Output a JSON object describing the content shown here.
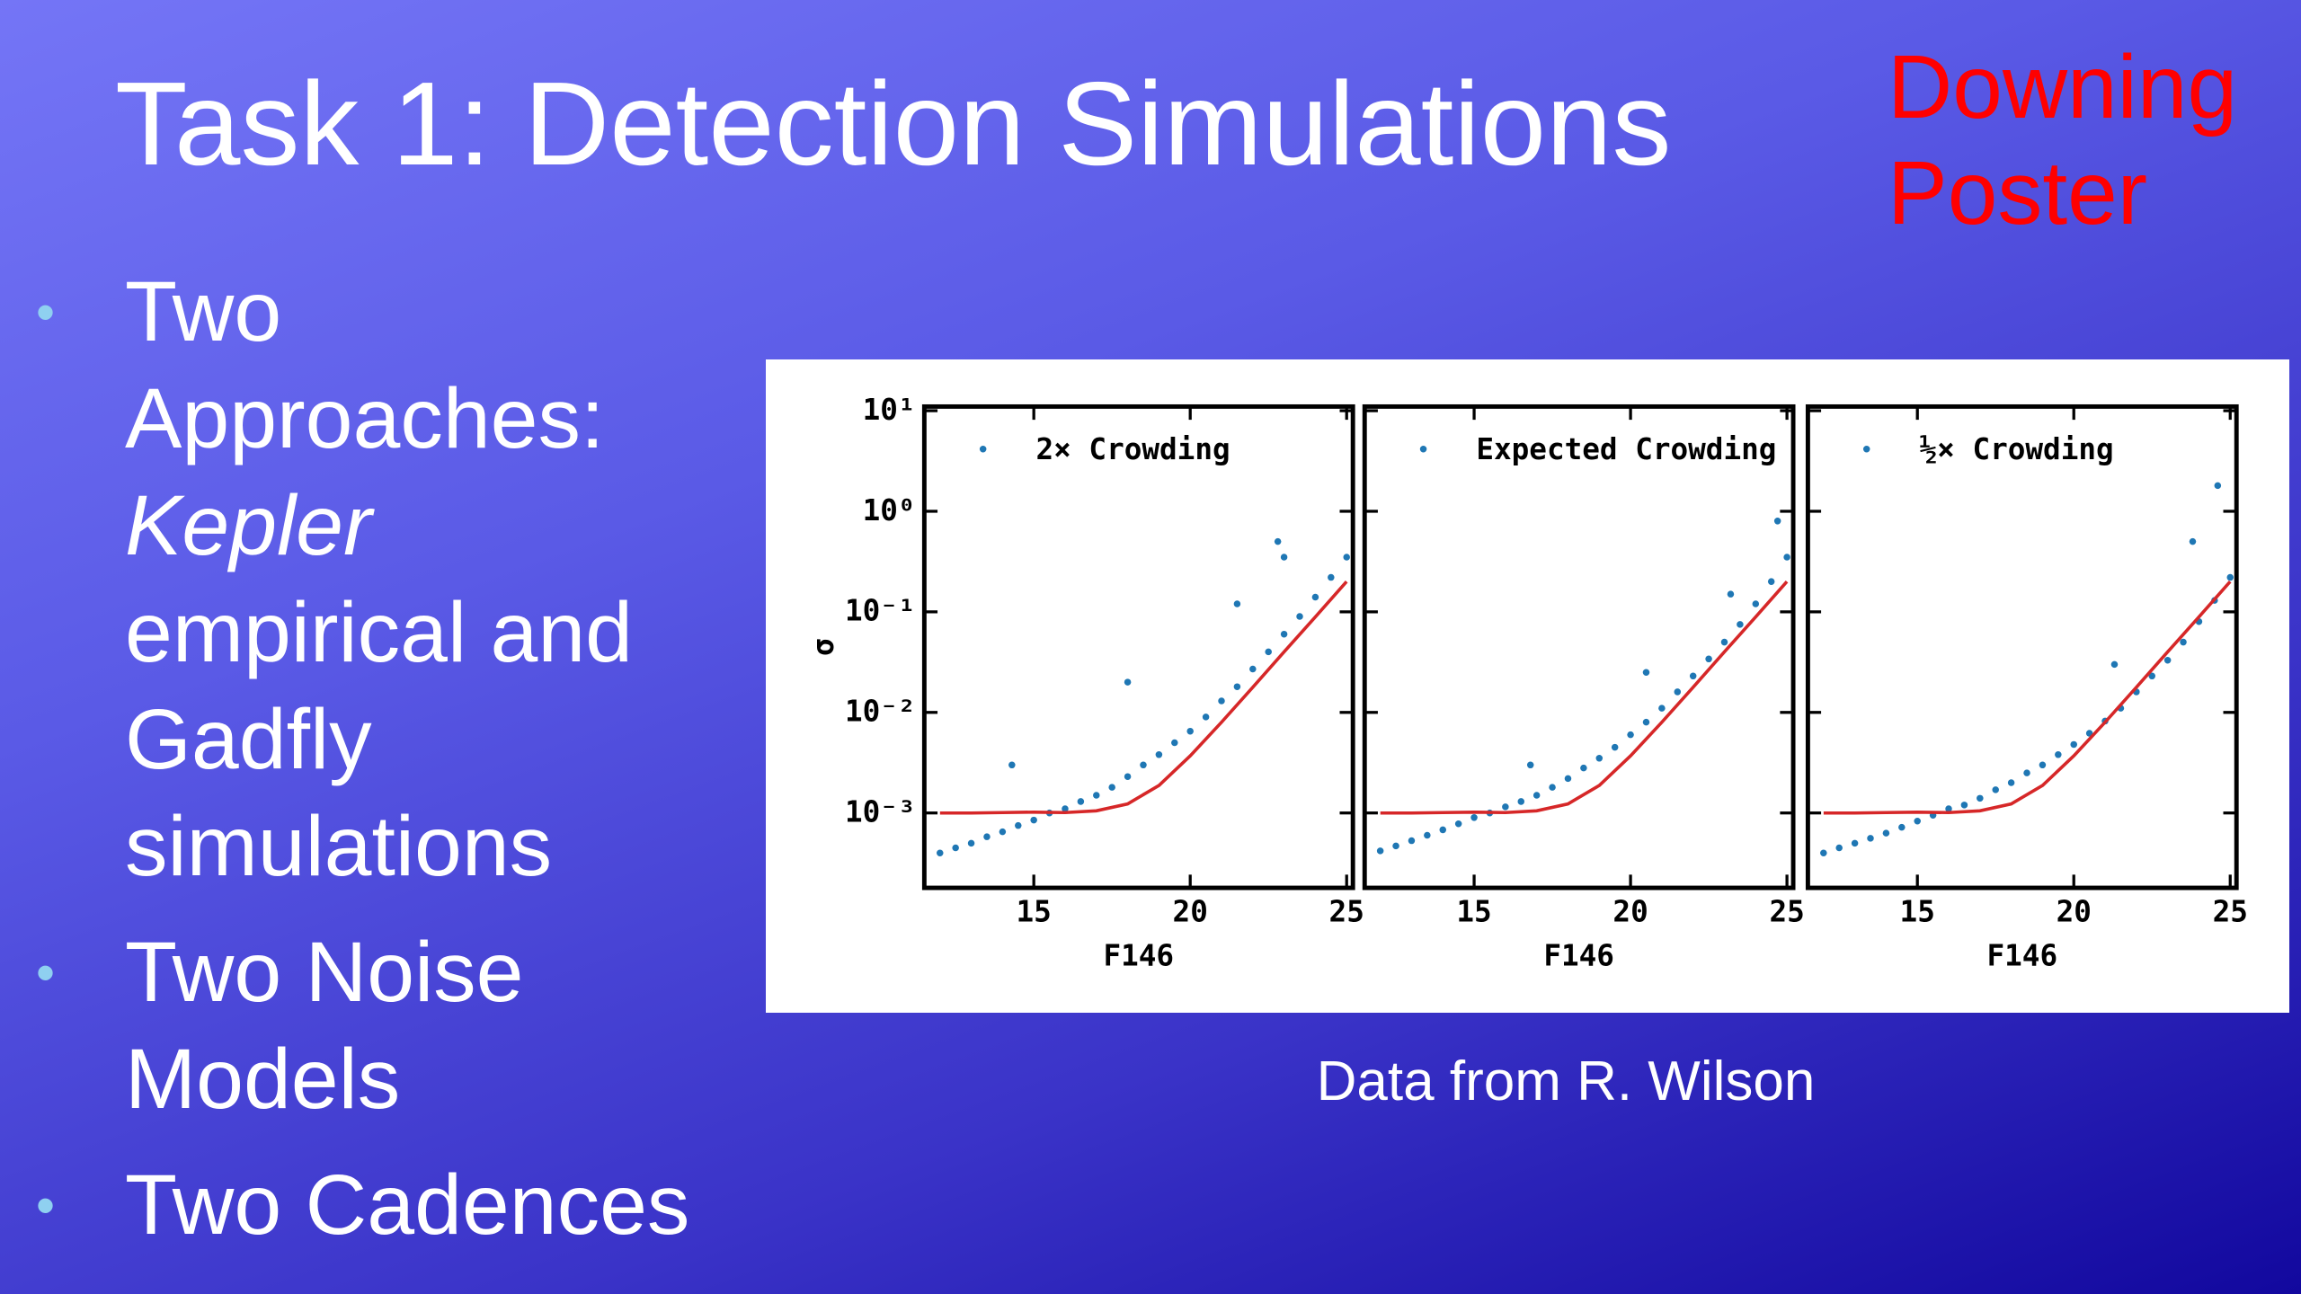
{
  "slide": {
    "title": "Task 1: Detection Simulations",
    "note": "Downing Poster",
    "bullets": [
      [
        "Two Approaches:",
        "Kepler",
        "empirical and Gadfly simulations"
      ],
      [
        "Two Noise Models"
      ],
      [
        "Two Cadences"
      ]
    ],
    "caption": "Data from R. Wilson"
  },
  "chart_data": [
    {
      "type": "scatter",
      "y_label": "σ",
      "x_label": "F146",
      "log_y": true,
      "xlim": [
        11.5,
        25.2
      ],
      "xticks": [
        15,
        20,
        25
      ],
      "ylim": [
        0.00018,
        11
      ],
      "yticks": [
        {
          "value": 10,
          "label": "10¹"
        },
        {
          "value": 1,
          "label": "10⁰"
        },
        {
          "value": 0.1,
          "label": "10⁻¹"
        },
        {
          "value": 0.01,
          "label": "10⁻²"
        },
        {
          "value": 0.001,
          "label": "10⁻³"
        }
      ],
      "series": [
        {
          "name": "2× Crowding",
          "color": "#1f77b4",
          "x": [
            12,
            12.5,
            13,
            13.5,
            14,
            14.5,
            15,
            15.5,
            16,
            16.5,
            17,
            17.5,
            18,
            18.5,
            19,
            19.5,
            20,
            20.5,
            21,
            21.5,
            22,
            22.5,
            23,
            23.5,
            24,
            24.5,
            25,
            14.3,
            18,
            21.5,
            23,
            22.8
          ],
          "values": [
            0.0004,
            0.00045,
            0.0005,
            0.00058,
            0.00065,
            0.00075,
            0.00085,
            0.001,
            0.0011,
            0.0013,
            0.0015,
            0.0018,
            0.0023,
            0.003,
            0.0038,
            0.005,
            0.0065,
            0.009,
            0.013,
            0.018,
            0.027,
            0.04,
            0.06,
            0.09,
            0.14,
            0.22,
            0.35,
            0.003,
            0.02,
            0.12,
            0.35,
            0.5
          ]
        },
        {
          "color": "#d62728",
          "x": [
            12,
            13,
            14,
            15,
            16,
            17,
            18,
            19,
            20,
            21,
            22,
            23,
            24,
            25
          ],
          "values": [
            0.001,
            0.001,
            0.00101,
            0.00102,
            0.00101,
            0.00105,
            0.00123,
            0.00188,
            0.0037,
            0.008,
            0.0178,
            0.04,
            0.089,
            0.2
          ]
        }
      ]
    },
    {
      "type": "scatter",
      "x_label": "F146",
      "log_y": true,
      "xlim": [
        11.5,
        25.2
      ],
      "xticks": [
        15,
        20,
        25
      ],
      "ylim": [
        0.00018,
        11
      ],
      "series": [
        {
          "name": "Expected Crowding",
          "color": "#1f77b4",
          "x": [
            12,
            12.5,
            13,
            13.5,
            14,
            14.5,
            15,
            15.5,
            16,
            16.5,
            17,
            17.5,
            18,
            18.5,
            19,
            19.5,
            20,
            20.5,
            21,
            21.5,
            22,
            22.5,
            23,
            23.5,
            24,
            24.5,
            25,
            16.8,
            20.5,
            23.2,
            24.7
          ],
          "values": [
            0.00042,
            0.00047,
            0.00053,
            0.0006,
            0.00068,
            0.00078,
            0.0009,
            0.001,
            0.00115,
            0.0013,
            0.0015,
            0.0018,
            0.0022,
            0.0028,
            0.0035,
            0.0045,
            0.006,
            0.008,
            0.011,
            0.016,
            0.023,
            0.034,
            0.05,
            0.075,
            0.12,
            0.2,
            0.35,
            0.003,
            0.025,
            0.15,
            0.8
          ]
        },
        {
          "color": "#d62728",
          "x": [
            12,
            13,
            14,
            15,
            16,
            17,
            18,
            19,
            20,
            21,
            22,
            23,
            24,
            25
          ],
          "values": [
            0.001,
            0.001,
            0.00101,
            0.00102,
            0.00101,
            0.00105,
            0.00123,
            0.00188,
            0.0037,
            0.008,
            0.0178,
            0.04,
            0.089,
            0.2
          ]
        }
      ]
    },
    {
      "type": "scatter",
      "x_label": "F146",
      "log_y": true,
      "xlim": [
        11.5,
        25.2
      ],
      "xticks": [
        15,
        20,
        25
      ],
      "ylim": [
        0.00018,
        11
      ],
      "series": [
        {
          "name": "½× Crowding",
          "color": "#1f77b4",
          "x": [
            12,
            12.5,
            13,
            13.5,
            14,
            14.5,
            15,
            15.5,
            16,
            16.5,
            17,
            17.5,
            18,
            18.5,
            19,
            19.5,
            20,
            20.5,
            21,
            21.5,
            22,
            22.5,
            23,
            23.5,
            24,
            24.5,
            25,
            24.6,
            23.8,
            21.3
          ],
          "values": [
            0.0004,
            0.00045,
            0.0005,
            0.00056,
            0.00063,
            0.00072,
            0.00083,
            0.00095,
            0.0011,
            0.0012,
            0.0014,
            0.0017,
            0.002,
            0.0025,
            0.003,
            0.0038,
            0.0048,
            0.0062,
            0.0082,
            0.011,
            0.016,
            0.023,
            0.033,
            0.05,
            0.08,
            0.13,
            0.22,
            1.8,
            0.5,
            0.03
          ]
        },
        {
          "color": "#d62728",
          "x": [
            12,
            13,
            14,
            15,
            16,
            17,
            18,
            19,
            20,
            21,
            22,
            23,
            24,
            25
          ],
          "values": [
            0.001,
            0.001,
            0.00101,
            0.00102,
            0.00101,
            0.00105,
            0.00123,
            0.00188,
            0.0037,
            0.008,
            0.0178,
            0.04,
            0.089,
            0.2
          ]
        }
      ]
    }
  ]
}
